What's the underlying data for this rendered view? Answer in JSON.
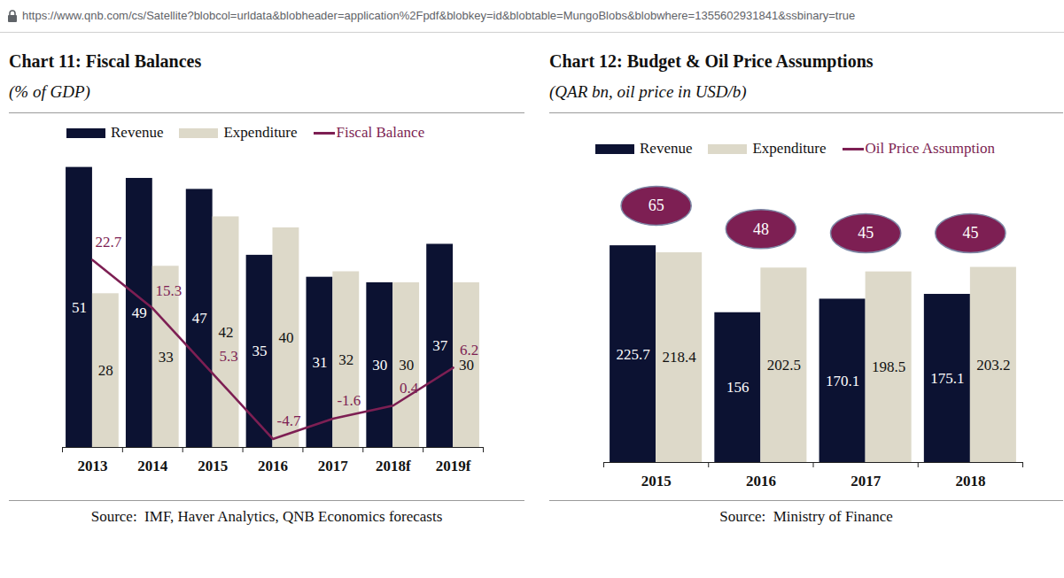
{
  "url": "https://www.qnb.com/cs/Satellite?blobcol=urldata&blobheader=application%2Fpdf&blobkey=id&blobtable=MungoBlobs&blobwhere=1355602931841&ssbinary=true",
  "chart_data": [
    {
      "type": "bar",
      "title": "Chart 11: Fiscal Balances",
      "subtitle": "(% of GDP)",
      "source": "Source:  IMF, Haver Analytics, QNB Economics forecasts",
      "categories": [
        "2013",
        "2014",
        "2015",
        "2016",
        "2017",
        "2018f",
        "2019f"
      ],
      "series": [
        {
          "name": "Revenue",
          "color": "#0c1232",
          "values": [
            51,
            49,
            47,
            35,
            31,
            30,
            37
          ]
        },
        {
          "name": "Expenditure",
          "color": "#ddd9c9",
          "values": [
            28,
            33,
            42,
            40,
            32,
            30,
            30
          ]
        },
        {
          "name": "Fiscal Balance",
          "type": "line",
          "axis": "y2",
          "color": "#7d1f53",
          "values": [
            22.7,
            15.3,
            5.3,
            -4.7,
            -1.6,
            0.4,
            6.2
          ]
        }
      ],
      "ylim": [
        0,
        54
      ],
      "y2lim": [
        -6,
        39.4
      ],
      "tick_labels": "x",
      "data_labels": true,
      "legend": "top"
    },
    {
      "type": "bar",
      "title": "Chart 12: Budget & Oil Price Assumptions",
      "subtitle": "(QAR bn, oil price in USD/b)",
      "source": "Source:  Ministry of Finance",
      "categories": [
        "2015",
        "2016",
        "2017",
        "2018"
      ],
      "series": [
        {
          "name": "Revenue",
          "color": "#0c1232",
          "values": [
            225.7,
            156,
            170.1,
            175.1
          ]
        },
        {
          "name": "Expenditure",
          "color": "#ddd9c9",
          "values": [
            218.4,
            202.5,
            198.5,
            203.2
          ]
        },
        {
          "name": "Oil Price Assumption",
          "type": "scatter",
          "marker": "ellipse",
          "axis": "y2",
          "color": "#7d1f53",
          "values": [
            65,
            48,
            45,
            45
          ]
        }
      ],
      "ylim": [
        0,
        306
      ],
      "y2lim": [
        -122,
        92
      ],
      "tick_labels": "x",
      "data_labels": true,
      "legend": "top"
    }
  ]
}
